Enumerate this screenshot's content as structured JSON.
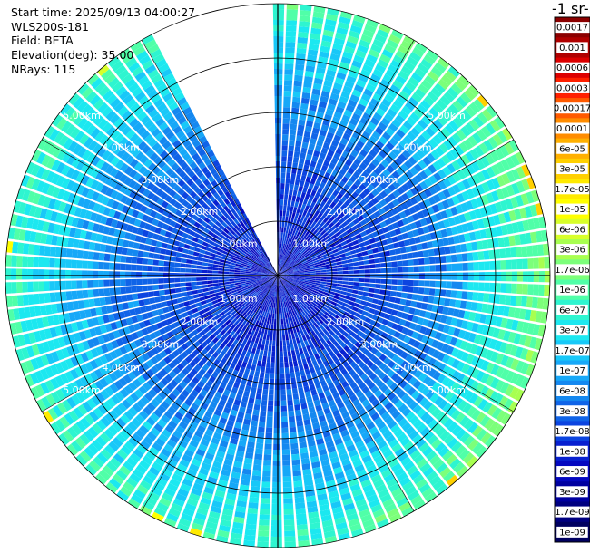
{
  "header": {
    "start_time": "Start time: 2025/09/13 04:00:27",
    "instrument": "WLS200s-181",
    "field": "Field: BETA",
    "elevation": "Elevation(deg): 35.00",
    "nrays": "NRays: 115"
  },
  "colorbar": {
    "title": "-1 sr-",
    "labels": [
      "0.0017",
      "0.001",
      "0.0006",
      "0.0003",
      "0.00017",
      "0.0001",
      "6e-05",
      "3e-05",
      "1.7e-05",
      "1e-05",
      "6e-06",
      "3e-06",
      "1.7e-06",
      "1e-06",
      "6e-07",
      "3e-07",
      "1.7e-07",
      "1e-07",
      "6e-08",
      "3e-08",
      "1.7e-08",
      "1e-08",
      "6e-09",
      "3e-09",
      "1.7e-09",
      "1e-09"
    ],
    "colors": [
      "#8b0000",
      "#b00000",
      "#dd0000",
      "#ff2000",
      "#ff5a00",
      "#ff8c00",
      "#ffb000",
      "#ffd000",
      "#ffea00",
      "#ffff00",
      "#d8ff2a",
      "#a8ff50",
      "#7cff7a",
      "#50ffa8",
      "#2ef5d0",
      "#1ce8f0",
      "#18c8f8",
      "#16a8f8",
      "#1488f0",
      "#1064e8",
      "#0c44e0",
      "#0820d0",
      "#0408c0",
      "#0000a0",
      "#000080",
      "#000060"
    ]
  },
  "chart_data": {
    "type": "heatmap",
    "projection": "polar PPI scan",
    "field": "BETA",
    "elevation_deg": 35.0,
    "nrays": 115,
    "range_rings_km": [
      1,
      2,
      3,
      4,
      5
    ],
    "ring_labels": [
      "1.00km",
      "2.00km",
      "3.00km",
      "4.00km",
      "5.00km"
    ],
    "missing_azimuth_sector_deg": [
      333,
      359
    ],
    "colorscale": "log",
    "value_range": [
      1e-09,
      0.0017
    ],
    "typical_values": {
      "near_range_0_to_1.5km": "1e-08 to 3e-08",
      "mid_range_1.5_to_4km": "3e-08 to 1.7e-07",
      "far_range_4_to_5km": "1.7e-07 to 1e-06",
      "edge_maximum": "1.7e-05"
    }
  }
}
